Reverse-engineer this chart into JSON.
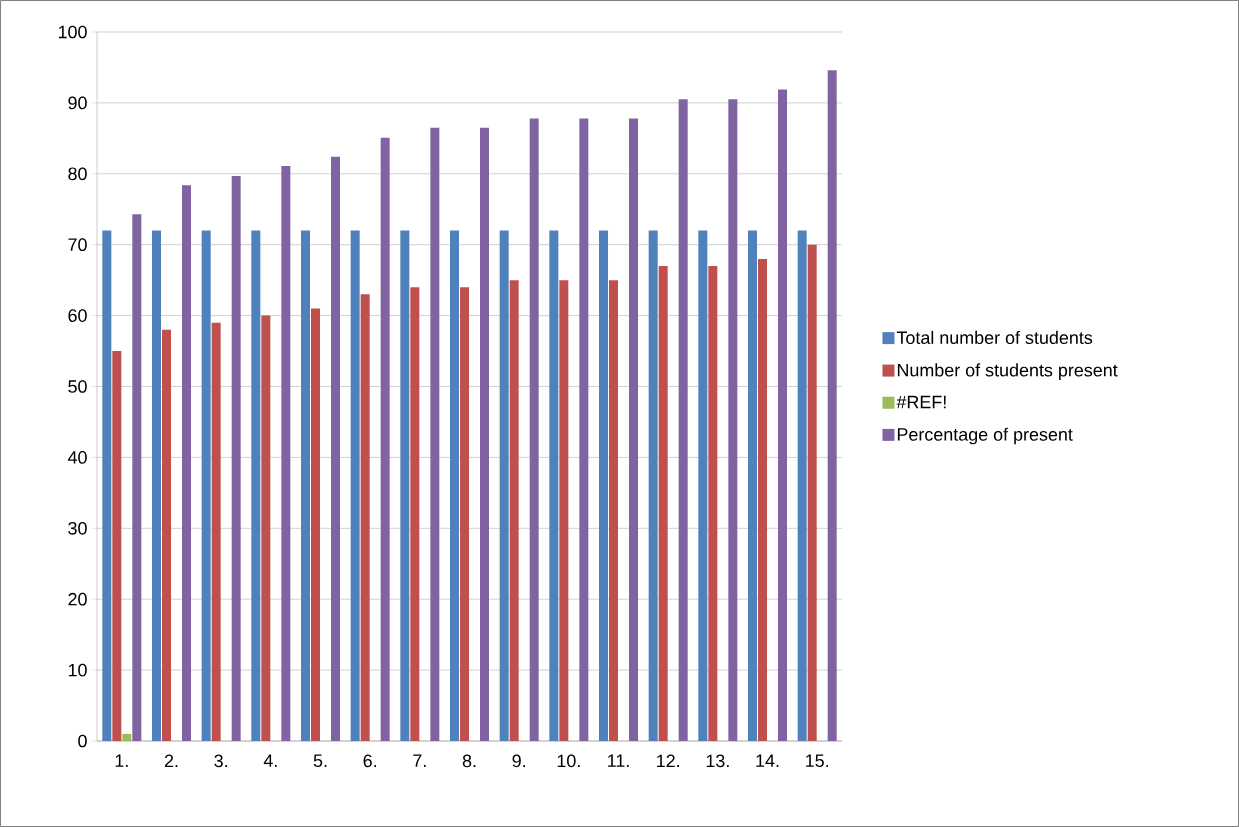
{
  "chart_data": {
    "type": "bar",
    "categories": [
      "1.",
      "2.",
      "3.",
      "4.",
      "5.",
      "6.",
      "7.",
      "8.",
      "9.",
      "10.",
      "11.",
      "12.",
      "13.",
      "14.",
      "15."
    ],
    "series": [
      {
        "name": "Total number of students",
        "color": "#4f81bd",
        "values": [
          72,
          72,
          72,
          72,
          72,
          72,
          72,
          72,
          72,
          72,
          72,
          72,
          72,
          72,
          72
        ]
      },
      {
        "name": "Number of students present",
        "color": "#c0504d",
        "values": [
          55,
          58,
          59,
          60,
          61,
          63,
          64,
          64,
          65,
          65,
          65,
          67,
          67,
          68,
          70
        ]
      },
      {
        "name": "#REF!",
        "color": "#9bbb59",
        "values": [
          1,
          0,
          0,
          0,
          0,
          0,
          0,
          0,
          0,
          0,
          0,
          0,
          0,
          0,
          0
        ]
      },
      {
        "name": "Percentage of present",
        "color": "#8064a2",
        "values": [
          74.3,
          78.4,
          79.7,
          81.1,
          82.4,
          85.1,
          86.5,
          86.5,
          87.8,
          87.8,
          87.8,
          90.5,
          90.5,
          91.9,
          94.6
        ]
      }
    ],
    "ylim": [
      0,
      100
    ],
    "yticks": [
      0,
      10,
      20,
      30,
      40,
      50,
      60,
      70,
      80,
      90,
      100
    ],
    "grid": "y",
    "legend": "right"
  }
}
